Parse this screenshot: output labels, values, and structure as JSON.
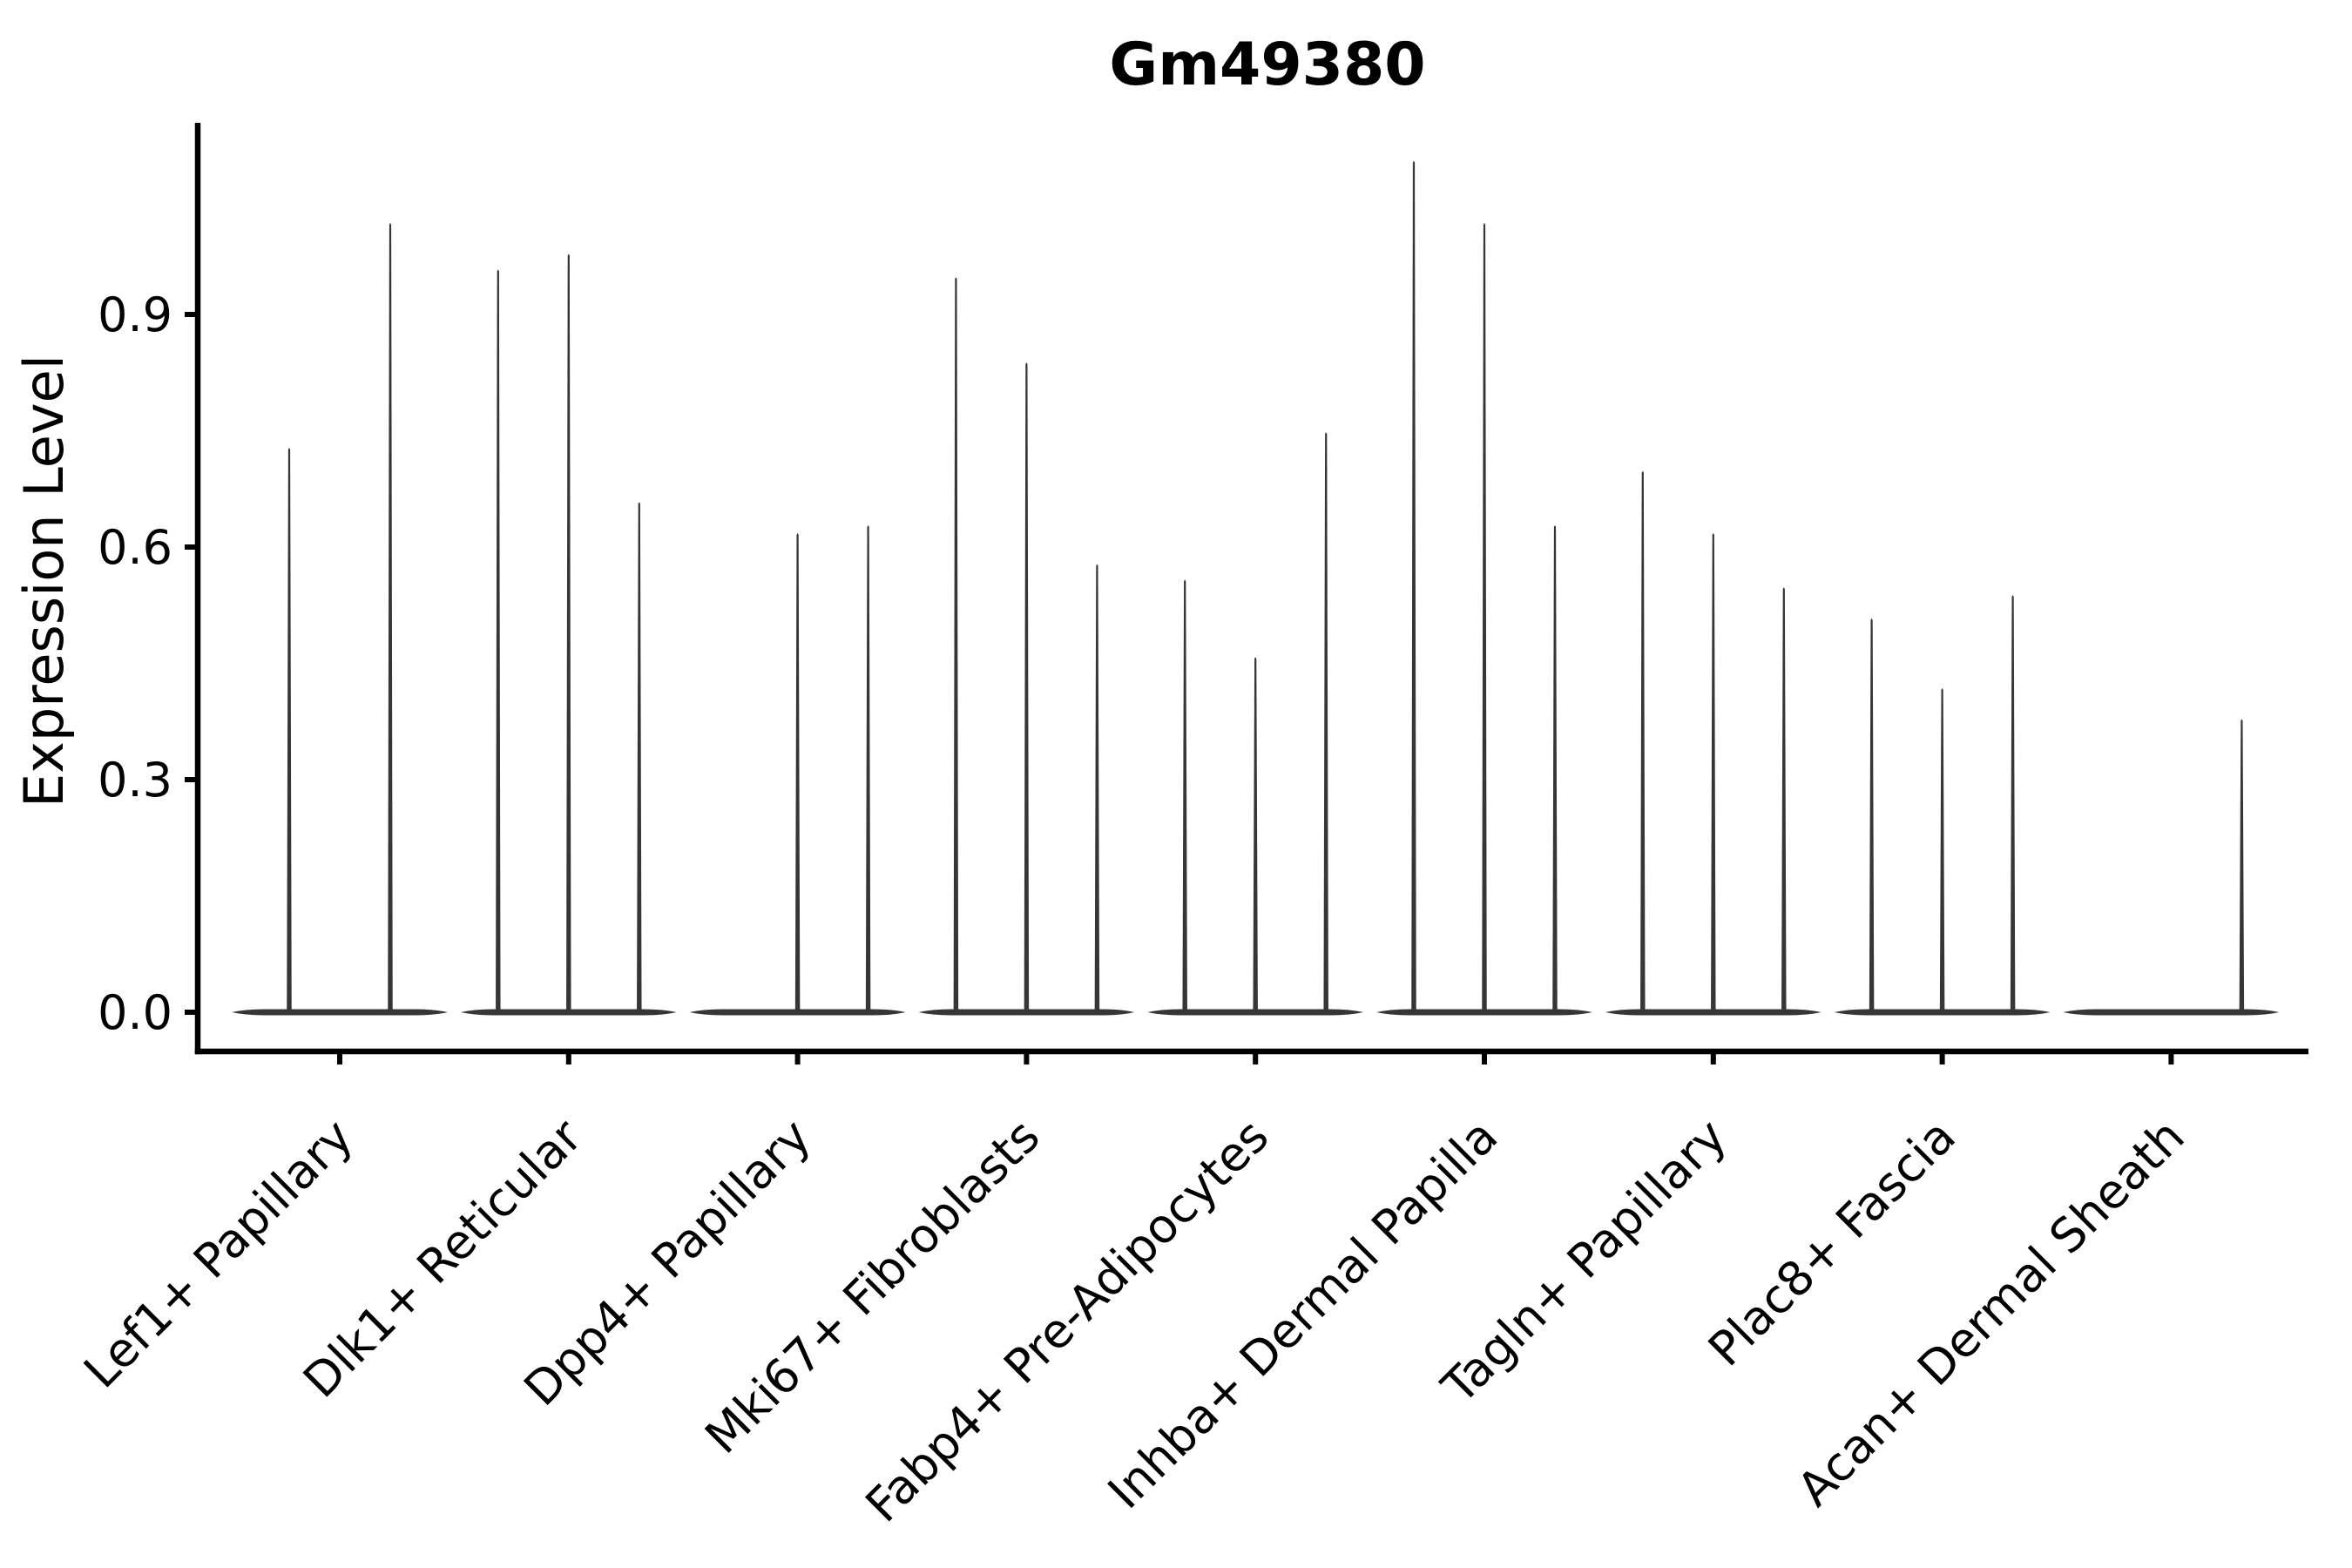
{
  "chart_data": {
    "type": "violin",
    "title": "Gm49380",
    "ylabel": "Expression Level",
    "xlabel": "",
    "grid": false,
    "legend": "none",
    "ylim": [
      -0.05,
      1.15
    ],
    "yticks": [
      0.0,
      0.3,
      0.6,
      0.9
    ],
    "ytick_labels": [
      "0.0",
      "0.3",
      "0.6",
      "0.9"
    ],
    "categories": [
      "Lef1+ Papillary",
      "Dlk1+ Reticular",
      "Dpp4+ Papillary",
      "Mki67+ Fibroblasts",
      "Fabp4+ Pre-Adipocytes",
      "Inhba+ Dermal Papilla",
      "Tagln+ Papillary",
      "Plac8+ Fascia",
      "Acan+ Dermal Sheath"
    ],
    "groups": [
      {
        "label": "Lef1+ Papillary",
        "violins": [
          {
            "dx": -58,
            "max": 0.73
          },
          {
            "dx": 58,
            "max": 1.02
          }
        ]
      },
      {
        "label": "Dlk1+ Reticular",
        "violins": [
          {
            "dx": -81,
            "max": 0.96
          },
          {
            "dx": 0,
            "max": 0.98
          },
          {
            "dx": 81,
            "max": 0.66
          }
        ]
      },
      {
        "label": "Dpp4+ Papillary",
        "violins": [
          {
            "dx": 0,
            "max": 0.62
          },
          {
            "dx": 81,
            "max": 0.63
          }
        ]
      },
      {
        "label": "Mki67+ Fibroblasts",
        "violins": [
          {
            "dx": -81,
            "max": 0.95
          },
          {
            "dx": 0,
            "max": 0.84
          },
          {
            "dx": 81,
            "max": 0.58
          }
        ]
      },
      {
        "label": "Fabp4+ Pre-Adipocytes",
        "violins": [
          {
            "dx": -81,
            "max": 0.56
          },
          {
            "dx": 0,
            "max": 0.46
          },
          {
            "dx": 81,
            "max": 0.75
          }
        ]
      },
      {
        "label": "Inhba+ Dermal Papilla",
        "violins": [
          {
            "dx": -81,
            "max": 1.1
          },
          {
            "dx": 0,
            "max": 1.02
          },
          {
            "dx": 81,
            "max": 0.63
          }
        ]
      },
      {
        "label": "Tagln+ Papillary",
        "violins": [
          {
            "dx": -81,
            "max": 0.7
          },
          {
            "dx": 0,
            "max": 0.62
          },
          {
            "dx": 81,
            "max": 0.55
          }
        ]
      },
      {
        "label": "Plac8+ Fascia",
        "violins": [
          {
            "dx": -81,
            "max": 0.51
          },
          {
            "dx": 0,
            "max": 0.42
          },
          {
            "dx": 81,
            "max": 0.54
          }
        ]
      },
      {
        "label": "Acan+ Dermal Sheath",
        "violins": [
          {
            "dx": 81,
            "max": 0.38
          }
        ]
      }
    ],
    "colors": {
      "violin": "#363636",
      "axis": "#000000",
      "text": "#000000",
      "background": "#ffffff"
    }
  }
}
